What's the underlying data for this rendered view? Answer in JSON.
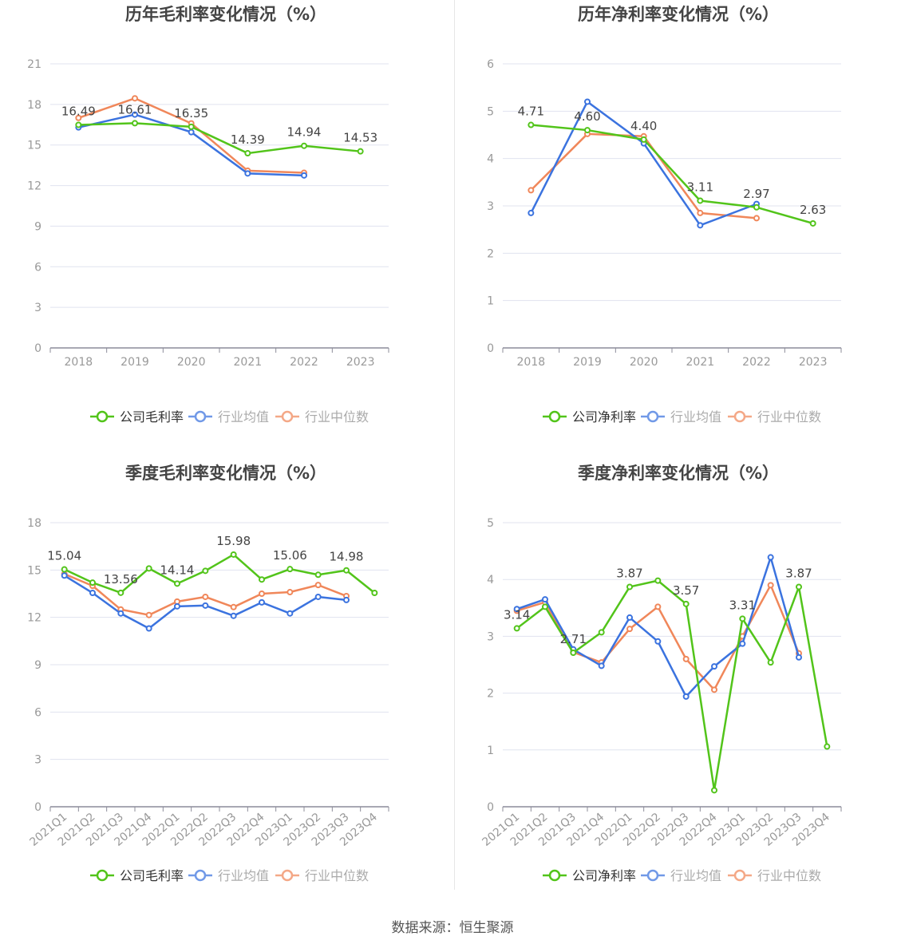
{
  "source_text": "数据来源：恒生聚源",
  "colors": {
    "company": "#52c41a",
    "average": "#3b73df",
    "median": "#f0875a",
    "grid": "#e0e3ef",
    "axis": "#8c8c9a",
    "tick_text": "#999999",
    "title_text": "#444444"
  },
  "chart_data": [
    {
      "type": "line",
      "title": "历年毛利率变化情况（%）",
      "x": [
        "2018",
        "2019",
        "2020",
        "2021",
        "2022",
        "2023"
      ],
      "ylim": [
        0,
        21
      ],
      "yticks": [
        0,
        3,
        6,
        9,
        12,
        15,
        18,
        21
      ],
      "rotate_x_labels": false,
      "legend_position": "bottom",
      "series": [
        {
          "name": "公司毛利率",
          "role": "company",
          "values": [
            16.49,
            16.61,
            16.35,
            14.39,
            14.94,
            14.53
          ]
        },
        {
          "name": "行业均值",
          "role": "average",
          "values": [
            16.3,
            17.25,
            15.95,
            12.9,
            12.75,
            null
          ]
        },
        {
          "name": "行业中位数",
          "role": "median",
          "values": [
            17.0,
            18.45,
            16.6,
            13.1,
            12.95,
            null
          ]
        }
      ],
      "data_labels": [
        {
          "series": 0,
          "index": 0,
          "text": "16.49"
        },
        {
          "series": 0,
          "index": 1,
          "text": "16.61"
        },
        {
          "series": 0,
          "index": 2,
          "text": "16.35"
        },
        {
          "series": 0,
          "index": 3,
          "text": "14.39"
        },
        {
          "series": 0,
          "index": 4,
          "text": "14.94"
        },
        {
          "series": 0,
          "index": 5,
          "text": "14.53"
        }
      ]
    },
    {
      "type": "line",
      "title": "历年净利率变化情况（%）",
      "x": [
        "2018",
        "2019",
        "2020",
        "2021",
        "2022",
        "2023"
      ],
      "ylim": [
        0,
        6
      ],
      "yticks": [
        0,
        1,
        2,
        3,
        4,
        5,
        6
      ],
      "rotate_x_labels": false,
      "legend_position": "bottom",
      "series": [
        {
          "name": "公司净利率",
          "role": "company",
          "values": [
            4.71,
            4.6,
            4.4,
            3.11,
            2.97,
            2.63
          ]
        },
        {
          "name": "行业均值",
          "role": "average",
          "values": [
            2.85,
            5.2,
            4.32,
            2.59,
            3.04,
            null
          ]
        },
        {
          "name": "行业中位数",
          "role": "median",
          "values": [
            3.33,
            4.52,
            4.47,
            2.85,
            2.74,
            null
          ]
        }
      ],
      "data_labels": [
        {
          "series": 0,
          "index": 0,
          "text": "4.71"
        },
        {
          "series": 0,
          "index": 1,
          "text": "4.60"
        },
        {
          "series": 0,
          "index": 2,
          "text": "4.40"
        },
        {
          "series": 0,
          "index": 3,
          "text": "3.11"
        },
        {
          "series": 0,
          "index": 4,
          "text": "2.97"
        },
        {
          "series": 0,
          "index": 5,
          "text": "2.63"
        }
      ]
    },
    {
      "type": "line",
      "title": "季度毛利率变化情况（%）",
      "x": [
        "2021Q1",
        "2021Q2",
        "2021Q3",
        "2021Q4",
        "2022Q1",
        "2022Q2",
        "2022Q3",
        "2022Q4",
        "2023Q1",
        "2023Q2",
        "2023Q3",
        "2023Q4"
      ],
      "ylim": [
        0,
        18
      ],
      "yticks": [
        0,
        3,
        6,
        9,
        12,
        15,
        18
      ],
      "rotate_x_labels": true,
      "legend_position": "bottom",
      "series": [
        {
          "name": "公司毛利率",
          "role": "company",
          "values": [
            15.04,
            14.2,
            13.56,
            15.1,
            14.14,
            14.95,
            15.98,
            14.4,
            15.06,
            14.7,
            14.98,
            13.55
          ]
        },
        {
          "name": "行业均值",
          "role": "average",
          "values": [
            14.65,
            13.55,
            12.25,
            11.3,
            12.7,
            12.75,
            12.1,
            12.95,
            12.25,
            13.3,
            13.1,
            null
          ]
        },
        {
          "name": "行业中位数",
          "role": "median",
          "values": [
            14.75,
            14.0,
            12.5,
            12.15,
            13.0,
            13.3,
            12.65,
            13.5,
            13.6,
            14.05,
            13.35,
            null
          ]
        }
      ],
      "data_labels": [
        {
          "series": 0,
          "index": 0,
          "text": "15.04"
        },
        {
          "series": 0,
          "index": 2,
          "text": "13.56"
        },
        {
          "series": 0,
          "index": 4,
          "text": "14.14"
        },
        {
          "series": 0,
          "index": 6,
          "text": "15.98"
        },
        {
          "series": 0,
          "index": 8,
          "text": "15.06"
        },
        {
          "series": 0,
          "index": 10,
          "text": "14.98"
        }
      ]
    },
    {
      "type": "line",
      "title": "季度净利率变化情况（%）",
      "x": [
        "2021Q1",
        "2021Q2",
        "2021Q3",
        "2021Q4",
        "2022Q1",
        "2022Q2",
        "2022Q3",
        "2022Q4",
        "2023Q1",
        "2023Q2",
        "2023Q3",
        "2023Q4"
      ],
      "ylim": [
        0,
        5
      ],
      "yticks": [
        0,
        1,
        2,
        3,
        4,
        5
      ],
      "rotate_x_labels": true,
      "legend_position": "bottom",
      "series": [
        {
          "name": "公司净利率",
          "role": "company",
          "values": [
            3.14,
            3.52,
            2.71,
            3.07,
            3.87,
            3.98,
            3.57,
            0.29,
            3.31,
            2.54,
            3.87,
            1.06
          ]
        },
        {
          "name": "行业均值",
          "role": "average",
          "values": [
            3.48,
            3.65,
            2.77,
            2.48,
            3.33,
            2.91,
            1.94,
            2.47,
            2.87,
            4.39,
            2.63,
            null
          ]
        },
        {
          "name": "行业中位数",
          "role": "median",
          "values": [
            3.45,
            3.6,
            2.72,
            2.54,
            3.13,
            3.52,
            2.6,
            2.06,
            3.0,
            3.9,
            2.7,
            null
          ]
        }
      ],
      "data_labels": [
        {
          "series": 0,
          "index": 0,
          "text": "3.14"
        },
        {
          "series": 0,
          "index": 2,
          "text": "2.71"
        },
        {
          "series": 0,
          "index": 4,
          "text": "3.87"
        },
        {
          "series": 0,
          "index": 6,
          "text": "3.57"
        },
        {
          "series": 0,
          "index": 8,
          "text": "3.31"
        },
        {
          "series": 0,
          "index": 10,
          "text": "3.87"
        }
      ]
    }
  ]
}
